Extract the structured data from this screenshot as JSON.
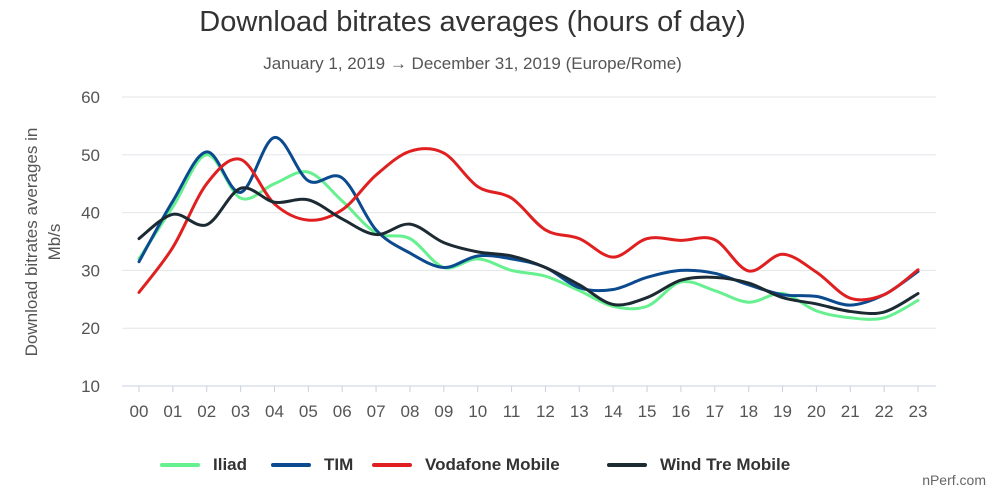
{
  "chart_data": {
    "type": "line",
    "title": "Download bitrates averages (hours of day)",
    "subtitle": "January 1, 2019 → December 31, 2019 (Europe/Rome)",
    "xlabel": "",
    "ylabel": "Download bitrates averages in Mb/s",
    "ylim": [
      10,
      60
    ],
    "yticks": [
      10,
      20,
      30,
      40,
      50,
      60
    ],
    "grid": true,
    "legend_position": "bottom",
    "x": [
      "00",
      "01",
      "02",
      "03",
      "04",
      "05",
      "06",
      "07",
      "08",
      "09",
      "10",
      "11",
      "12",
      "13",
      "14",
      "15",
      "16",
      "17",
      "18",
      "19",
      "20",
      "21",
      "22",
      "23"
    ],
    "series": [
      {
        "name": "Iliad",
        "color": "#66f08f",
        "values": [
          32,
          41,
          50,
          42.5,
          45,
          47,
          42,
          36.5,
          35.5,
          30.5,
          32,
          30,
          29,
          26.5,
          23.8,
          23.8,
          28,
          26.5,
          24.5,
          26,
          23,
          21.8,
          21.8,
          24.8
        ]
      },
      {
        "name": "TIM",
        "color": "#0b4a8f",
        "values": [
          31.5,
          42,
          50.5,
          43.5,
          53,
          45.5,
          46,
          37,
          33,
          30.5,
          32.5,
          32,
          30.5,
          27,
          26.7,
          28.8,
          30,
          29.5,
          27.5,
          25.8,
          25.5,
          24,
          25.8,
          29.8
        ]
      },
      {
        "name": "Vodafone Mobile",
        "color": "#e02020",
        "values": [
          26.2,
          34,
          45,
          49.2,
          41.5,
          38.7,
          40.5,
          46.5,
          50.6,
          50.3,
          44.5,
          42.5,
          37,
          35.5,
          32.3,
          35.5,
          35.2,
          35.3,
          29.9,
          32.8,
          29.7,
          25.2,
          25.8,
          30.1
        ]
      },
      {
        "name": "Wind Tre Mobile",
        "color": "#1c2b33",
        "values": [
          35.5,
          39.7,
          37.9,
          44.2,
          41.8,
          42.2,
          38.9,
          36.2,
          38,
          34.8,
          33.2,
          32.5,
          30.5,
          27.5,
          24.1,
          25.3,
          28.3,
          28.8,
          27.8,
          25.3,
          24.2,
          22.9,
          22.8,
          26
        ]
      }
    ]
  },
  "credit": "nPerf.com"
}
